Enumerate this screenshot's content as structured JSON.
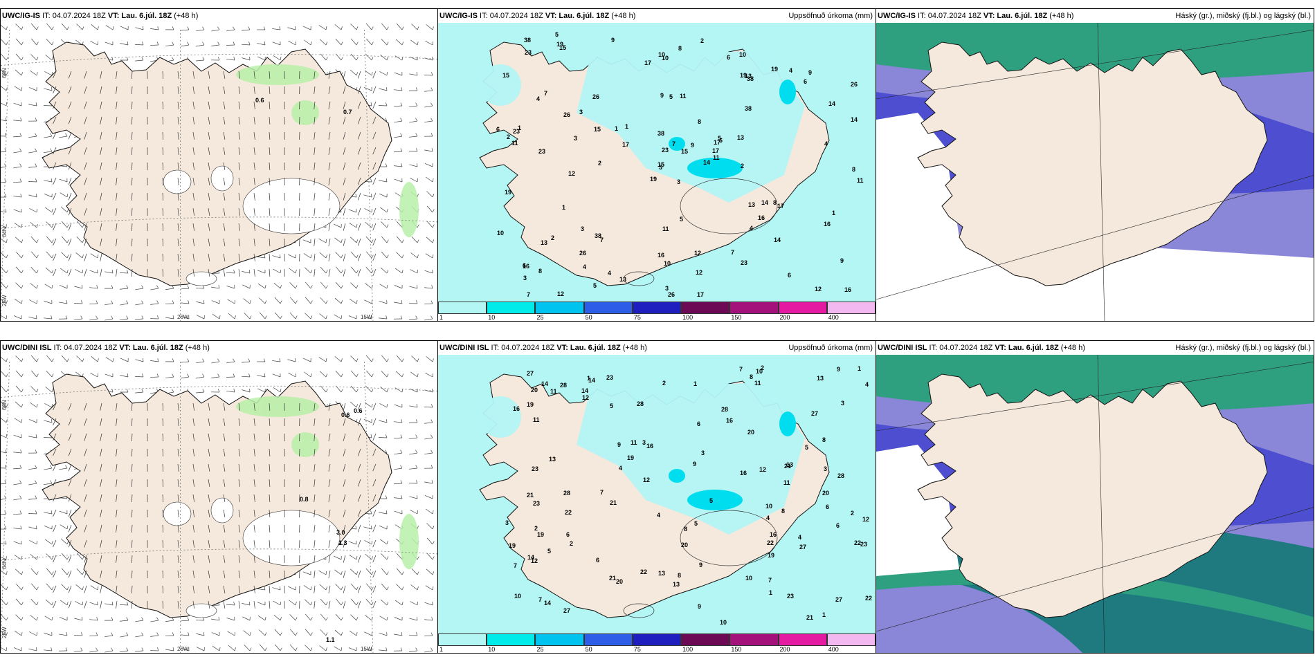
{
  "panels": [
    {
      "id": "p1",
      "model": "UWC/IG-IS",
      "it_label": "IT:",
      "it": "04.07.2024 18Z",
      "vt_label": "VT:",
      "vt": "Lau. 6.júl. 18Z",
      "lead": "(+48 h)",
      "right": "",
      "kind": "wind"
    },
    {
      "id": "p2",
      "model": "UWC/IG-IS",
      "it_label": "IT:",
      "it": "04.07.2024 18Z",
      "vt_label": "VT:",
      "vt": "Lau. 6.júl. 18Z",
      "lead": "(+48 h)",
      "right": "Uppsöfnuð úrkoma (mm)",
      "kind": "precip"
    },
    {
      "id": "p3",
      "model": "UWC/IG-IS",
      "it_label": "IT:",
      "it": "04.07.2024 18Z",
      "vt_label": "VT:",
      "vt": "Lau. 6.júl. 18Z",
      "lead": "(+48 h)",
      "right": "Háský (gr.), miðský (fj.bl.) og lágský (bl.)",
      "kind": "cloud"
    },
    {
      "id": "p4",
      "model": "UWC/DINI ISL",
      "it_label": "IT:",
      "it": "04.07.2024 18Z",
      "vt_label": "VT:",
      "vt": "Lau. 6.júl. 18Z",
      "lead": "(+48 h)",
      "right": "",
      "kind": "wind"
    },
    {
      "id": "p5",
      "model": "UWC/DINI ISL",
      "it_label": "IT:",
      "it": "04.07.2024 18Z",
      "vt_label": "VT:",
      "vt": "Lau. 6.júl. 18Z",
      "lead": "(+48 h)",
      "right": "Uppsöfnuð úrkoma (mm)",
      "kind": "precip"
    },
    {
      "id": "p6",
      "model": "UWC/DINI ISL",
      "it_label": "IT:",
      "it": "04.07.2024 18Z",
      "vt_label": "VT:",
      "vt": "Lau. 6.júl. 18Z",
      "lead": "(+48 h)",
      "right": "Háský (gr.), miðský (fj.bl.) og lágský (bl.)",
      "kind": "cloud"
    }
  ],
  "wind_labels": {
    "p1": [
      "0.6",
      "0.7"
    ],
    "p4": [
      "0.6",
      "0.6",
      "0.8",
      "3.0",
      "1.3",
      "1.1"
    ]
  },
  "axis_labels": {
    "lat66": "66N",
    "lat64": "64N",
    "lon25": "25W",
    "lon20": "20W",
    "lon15": "15W"
  },
  "precip_numbers": {
    "p2": [
      "3",
      "4",
      "5",
      "6",
      "17",
      "7",
      "10",
      "11",
      "13",
      "14",
      "15",
      "16",
      "23",
      "26",
      "19",
      "38",
      "12",
      "9",
      "8",
      "2",
      "1"
    ],
    "p5": [
      "4",
      "6",
      "7",
      "14",
      "16",
      "23",
      "12",
      "11",
      "9",
      "10",
      "19",
      "21",
      "20",
      "27",
      "22",
      "28",
      "8",
      "5",
      "3",
      "2",
      "1",
      "13"
    ]
  },
  "legend": {
    "labels": [
      "1",
      "10",
      "25",
      "50",
      "75",
      "100",
      "150",
      "200",
      "400"
    ],
    "colors": [
      "#b3f6f4",
      "#00ebea",
      "#00c3ef",
      "#2e5ee8",
      "#1f1fc0",
      "#6d0a55",
      "#a5117a",
      "#e41aa3",
      "#f2b8ef"
    ]
  },
  "colors": {
    "land": "#f5e8dc",
    "precip_bg": "#b3f6f4",
    "cloud_high": "#2ea07f",
    "cloud_mid": "#4d4ed0",
    "cloud_low": "#8a86d8"
  }
}
